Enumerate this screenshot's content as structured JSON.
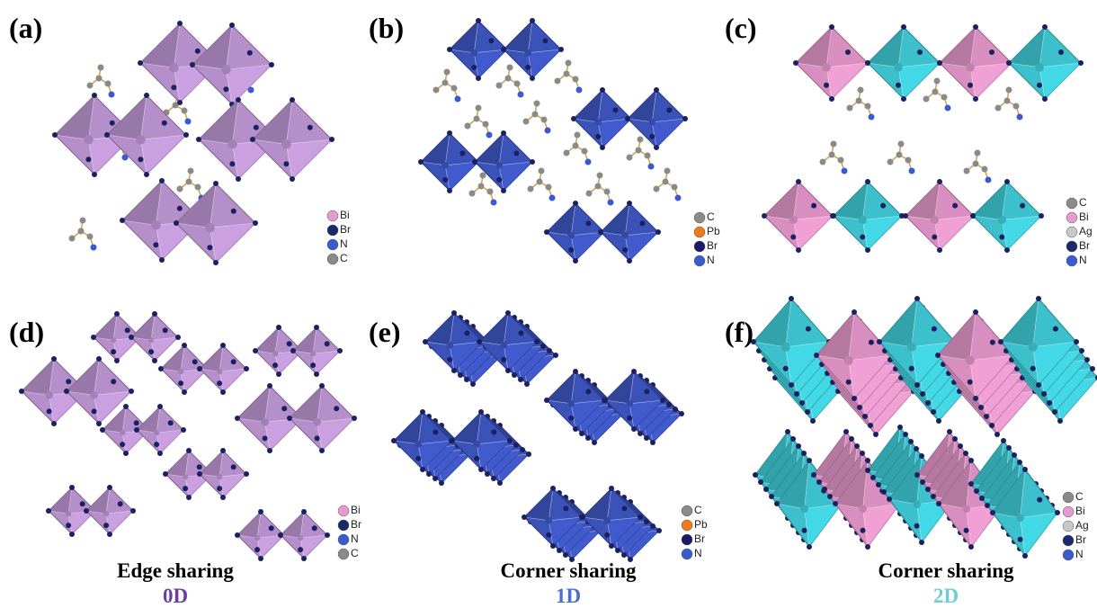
{
  "panels": [
    {
      "label": "(a)",
      "legend": [
        {
          "element": "Bi",
          "color": "#e79ad0"
        },
        {
          "element": "Br",
          "color": "#1a2a6a"
        },
        {
          "element": "N",
          "color": "#3a5ad0"
        },
        {
          "element": "C",
          "color": "#8a8a8a"
        }
      ]
    },
    {
      "label": "(b)",
      "legend": [
        {
          "element": "C",
          "color": "#8a8a8a"
        },
        {
          "element": "Pb",
          "color": "#f07a1a"
        },
        {
          "element": "Br",
          "color": "#1a1a6a"
        },
        {
          "element": "N",
          "color": "#3a5ad0"
        }
      ]
    },
    {
      "label": "(c)",
      "legend": [
        {
          "element": "C",
          "color": "#8a8a8a"
        },
        {
          "element": "Bi",
          "color": "#e79ad0"
        },
        {
          "element": "Ag",
          "color": "#c8c8c8"
        },
        {
          "element": "Br",
          "color": "#1a2a6a"
        },
        {
          "element": "N",
          "color": "#3a5ad0"
        }
      ]
    },
    {
      "label": "(d)",
      "legend": [
        {
          "element": "Bi",
          "color": "#e79ad0"
        },
        {
          "element": "Br",
          "color": "#1a2a6a"
        },
        {
          "element": "N",
          "color": "#3a5ad0"
        },
        {
          "element": "C",
          "color": "#8a8a8a"
        }
      ]
    },
    {
      "label": "(e)",
      "legend": [
        {
          "element": "C",
          "color": "#8a8a8a"
        },
        {
          "element": "Pb",
          "color": "#f07a1a"
        },
        {
          "element": "Br",
          "color": "#1a1a6a"
        },
        {
          "element": "N",
          "color": "#3a5ad0"
        }
      ]
    },
    {
      "label": "(f)",
      "legend": [
        {
          "element": "C",
          "color": "#8a8a8a"
        },
        {
          "element": "Bi",
          "color": "#e79ad0"
        },
        {
          "element": "Ag",
          "color": "#c8c8c8"
        },
        {
          "element": "Br",
          "color": "#1a2a6a"
        },
        {
          "element": "N",
          "color": "#3a5ad0"
        }
      ]
    }
  ],
  "captions": [
    {
      "sharing": "Edge sharing",
      "dimension": "0D",
      "color": "#6b3fa0"
    },
    {
      "sharing": "Corner sharing",
      "dimension": "1D",
      "color": "#4a6fd0"
    },
    {
      "sharing": "Corner sharing",
      "dimension": "2D",
      "color": "#6fcdd6"
    }
  ]
}
